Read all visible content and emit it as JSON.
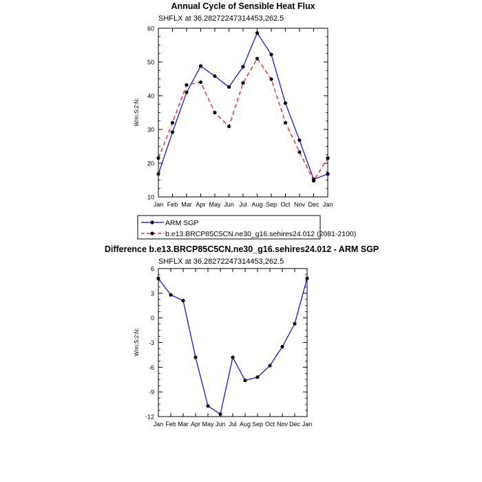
{
  "chart_data": [
    {
      "type": "line",
      "title": "Annual Cycle of Sensible Heat Flux",
      "subtitle": "SHFLX at 36.28272247314453,262.5",
      "ylabel": "W/m:S:2:N:",
      "xlabel": "",
      "categories": [
        "Jan",
        "Feb",
        "Mar",
        "Apr",
        "May",
        "Jun",
        "Jul",
        "Aug",
        "Sep",
        "Oct",
        "Nov",
        "Dec",
        "Jan"
      ],
      "ylim": [
        10,
        60
      ],
      "yticks": [
        10,
        20,
        30,
        40,
        50,
        60
      ],
      "series": [
        {
          "name": "ARM SGP",
          "color": "#0000ff",
          "dash": "solid",
          "values": [
            16.8,
            29.2,
            41.0,
            48.8,
            45.8,
            42.6,
            48.6,
            58.6,
            52.2,
            37.8,
            26.8,
            15.2,
            16.8
          ]
        },
        {
          "name": "b.e13.BRCP85C5CN.ne30_g16.sehires24.012 (2081-2100)",
          "color": "#ff0000",
          "dash": "dashed",
          "values": [
            21.5,
            32.0,
            43.2,
            44.0,
            35.0,
            30.9,
            43.8,
            51.0,
            44.9,
            32.0,
            23.3,
            14.8,
            21.5
          ]
        }
      ],
      "legend_position": "bottom"
    },
    {
      "type": "line",
      "title": "Difference b.e13.BRCP85C5CN.ne30_g16.sehires24.012 - ARM SGP",
      "subtitle": "SHFLX at 36.28272247314453,262.5",
      "ylabel": "W/m:S:2:N:",
      "xlabel": "",
      "categories": [
        "Jan",
        "Feb",
        "Mar",
        "Apr",
        "May",
        "Jun",
        "Jul",
        "Aug",
        "Sep",
        "Oct",
        "Nov",
        "Dec",
        "Jan"
      ],
      "ylim": [
        -12,
        6
      ],
      "yticks": [
        -12,
        -9,
        -6,
        -3,
        0,
        3,
        6
      ],
      "series": [
        {
          "name": "",
          "color": "#0000ff",
          "dash": "solid",
          "values": [
            4.8,
            2.8,
            2.1,
            -4.8,
            -10.7,
            -11.7,
            -4.8,
            -7.6,
            -7.2,
            -5.8,
            -3.5,
            -0.7,
            4.8
          ]
        }
      ]
    }
  ]
}
